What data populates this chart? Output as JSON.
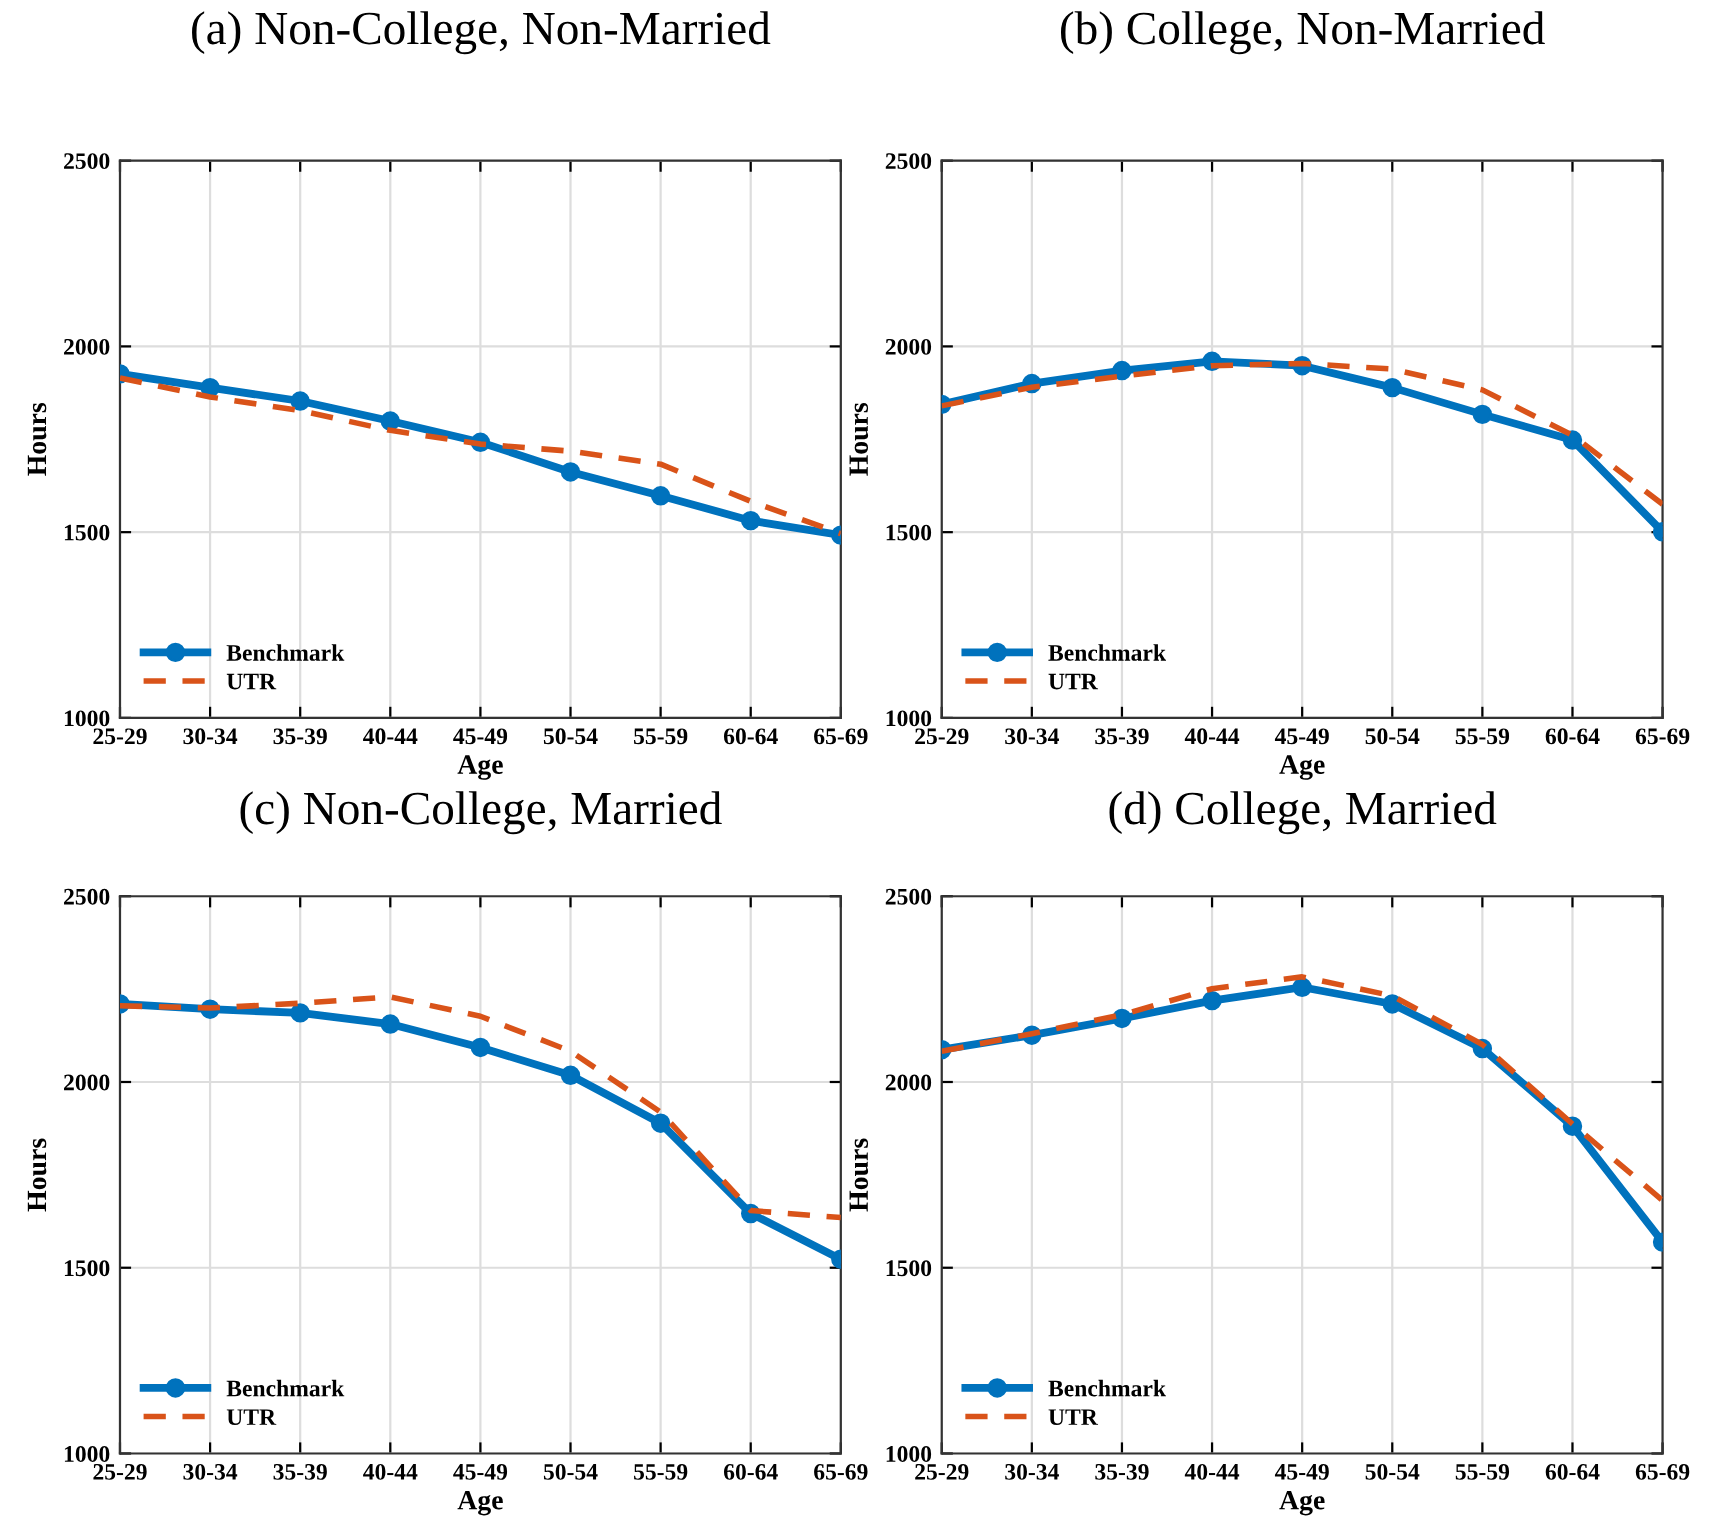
{
  "chart_data": [
    {
      "type": "line",
      "title": "(a) Non-College, Non-Married",
      "xlabel": "Age",
      "ylabel": "Hours",
      "categories": [
        "25-29",
        "30-34",
        "35-39",
        "40-44",
        "45-49",
        "50-54",
        "55-59",
        "60-64",
        "65-69"
      ],
      "ylim": [
        1000,
        2500
      ],
      "yticks": [
        1000,
        1500,
        2000,
        2500
      ],
      "grid": true,
      "legend": "bottom left",
      "series": [
        {
          "name": "Benchmark",
          "color": "#0072bd",
          "marker": "circle",
          "line_style": "solid",
          "values": [
            1926,
            1889,
            1853,
            1799,
            1742,
            1662,
            1598,
            1531,
            1492
          ]
        },
        {
          "name": "UTR",
          "color": "#d95319",
          "marker": "none",
          "line_style": "dashed",
          "values": [
            1915,
            1864,
            1827,
            1774,
            1737,
            1718,
            1683,
            1583,
            1496
          ]
        }
      ]
    },
    {
      "type": "line",
      "title": "(b) College, Non-Married",
      "xlabel": "Age",
      "ylabel": "Hours",
      "categories": [
        "25-29",
        "30-34",
        "35-39",
        "40-44",
        "45-49",
        "50-54",
        "55-59",
        "60-64",
        "65-69"
      ],
      "ylim": [
        1000,
        2500
      ],
      "yticks": [
        1000,
        1500,
        2000,
        2500
      ],
      "grid": true,
      "legend": "bottom left",
      "series": [
        {
          "name": "Benchmark",
          "color": "#0072bd",
          "marker": "circle",
          "line_style": "solid",
          "values": [
            1844,
            1900,
            1935,
            1960,
            1948,
            1889,
            1817,
            1748,
            1501
          ]
        },
        {
          "name": "UTR",
          "color": "#d95319",
          "marker": "none",
          "line_style": "dashed",
          "values": [
            1840,
            1890,
            1920,
            1948,
            1954,
            1939,
            1883,
            1761,
            1575
          ]
        }
      ]
    },
    {
      "type": "line",
      "title": "(c) Non-College, Married",
      "xlabel": "Age",
      "ylabel": "Hours",
      "categories": [
        "25-29",
        "30-34",
        "35-39",
        "40-44",
        "45-49",
        "50-54",
        "55-59",
        "60-64",
        "65-69"
      ],
      "ylim": [
        1000,
        2500
      ],
      "yticks": [
        1000,
        1500,
        2000,
        2500
      ],
      "grid": true,
      "legend": "bottom left",
      "series": [
        {
          "name": "Benchmark",
          "color": "#0072bd",
          "marker": "circle",
          "line_style": "solid",
          "values": [
            2210,
            2196,
            2186,
            2156,
            2093,
            2018,
            1889,
            1646,
            1523
          ]
        },
        {
          "name": "UTR",
          "color": "#d95319",
          "marker": "none",
          "line_style": "dashed",
          "values": [
            2205,
            2199,
            2212,
            2229,
            2177,
            2083,
            1919,
            1654,
            1635
          ]
        }
      ]
    },
    {
      "type": "line",
      "title": "(d) College, Married",
      "xlabel": "Age",
      "ylabel": "Hours",
      "categories": [
        "25-29",
        "30-34",
        "35-39",
        "40-44",
        "45-49",
        "50-54",
        "55-59",
        "60-64",
        "65-69"
      ],
      "ylim": [
        1000,
        2500
      ],
      "yticks": [
        1000,
        1500,
        2000,
        2500
      ],
      "grid": true,
      "legend": "bottom left",
      "series": [
        {
          "name": "Benchmark",
          "color": "#0072bd",
          "marker": "circle",
          "line_style": "solid",
          "values": [
            2087,
            2126,
            2171,
            2219,
            2255,
            2210,
            2090,
            1881,
            1569
          ]
        },
        {
          "name": "UTR",
          "color": "#d95319",
          "marker": "none",
          "line_style": "dashed",
          "values": [
            2083,
            2130,
            2181,
            2251,
            2283,
            2232,
            2101,
            1887,
            1681
          ]
        }
      ]
    }
  ]
}
